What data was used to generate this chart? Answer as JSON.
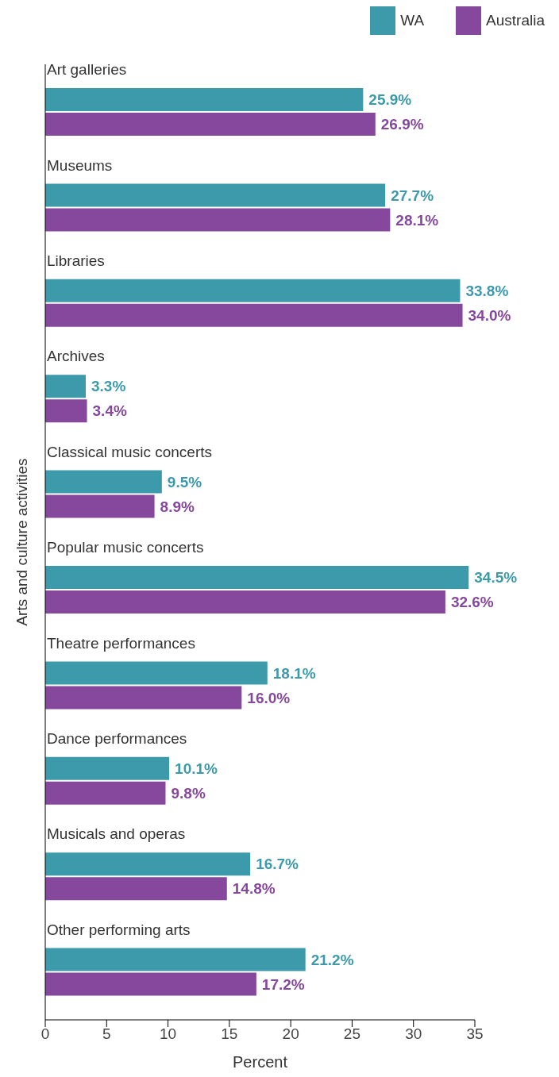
{
  "chart_data": {
    "type": "bar",
    "orientation": "horizontal",
    "ylabel": "Arts and culture activities",
    "xlabel": "Percent",
    "categories": [
      "Art galleries",
      "Museums",
      "Libraries",
      "Archives",
      "Classical music concerts",
      "Popular music concerts",
      "Theatre performances",
      "Dance performances",
      "Musicals and operas",
      "Other performing arts"
    ],
    "series": [
      {
        "name": "WA",
        "color": "#3d9aab",
        "values": [
          25.9,
          27.7,
          33.8,
          3.3,
          9.5,
          34.5,
          18.1,
          10.1,
          16.7,
          21.2
        ],
        "value_labels": [
          "25.9%",
          "27.7%",
          "33.8%",
          "3.3%",
          "9.5%",
          "34.5%",
          "18.1%",
          "10.1%",
          "16.7%",
          "21.2%"
        ]
      },
      {
        "name": "Australia",
        "color": "#86489c",
        "values": [
          26.9,
          28.1,
          34.0,
          3.4,
          8.9,
          32.6,
          16.0,
          9.8,
          14.8,
          17.2
        ],
        "value_labels": [
          "26.9%",
          "28.1%",
          "34.0%",
          "3.4%",
          "8.9%",
          "32.6%",
          "16.0%",
          "9.8%",
          "14.8%",
          "17.2%"
        ]
      }
    ],
    "xlim": [
      0,
      35
    ],
    "xticks": [
      0,
      5,
      10,
      15,
      20,
      25,
      30,
      35
    ],
    "grid": false,
    "legend": "top right"
  }
}
